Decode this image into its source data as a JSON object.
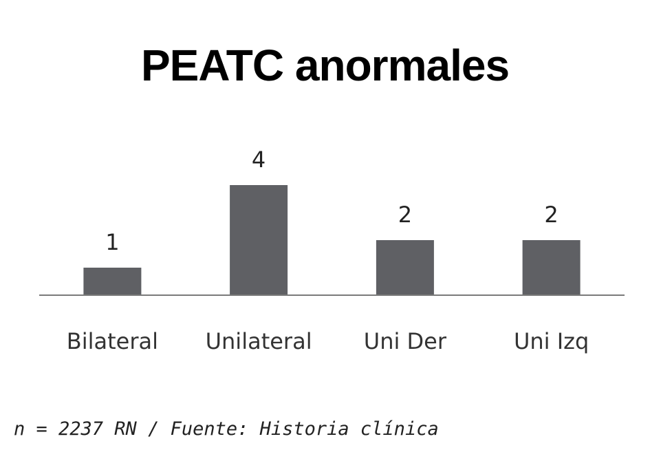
{
  "chart_data": {
    "type": "bar",
    "title": "PEATC anormales",
    "categories": [
      "Bilateral",
      "Unilateral",
      "Uni Der",
      "Uni Izq"
    ],
    "values": [
      1,
      4,
      2,
      2
    ],
    "data_labels": [
      "1",
      "4",
      "2",
      "2"
    ],
    "xlabel": "",
    "ylabel": "",
    "ylim": [
      0,
      4
    ],
    "grid": false,
    "legend": "none",
    "bar_color": "#5f6064",
    "axis_color": "#7a7a7a"
  },
  "footer": {
    "note": "n = 2237 RN / Fuente: Historia clínica"
  }
}
